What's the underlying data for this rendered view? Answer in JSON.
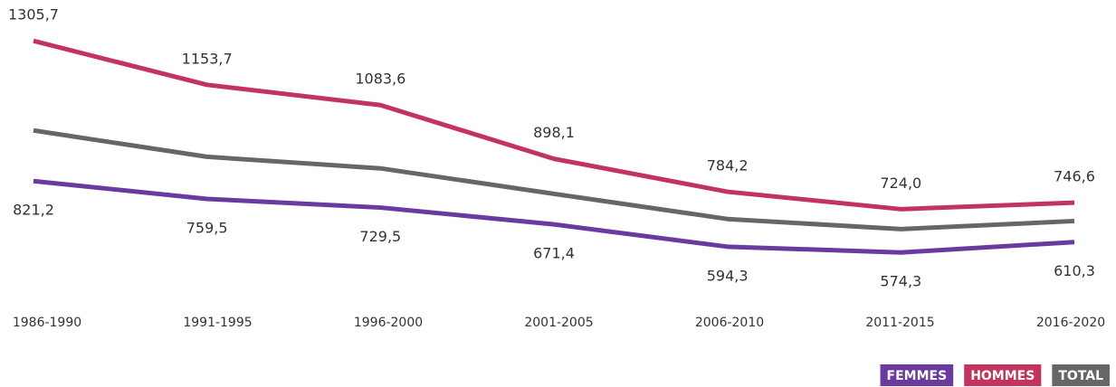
{
  "chart_data": {
    "type": "line",
    "categories": [
      "1986-1990",
      "1991-1995",
      "1996-2000",
      "2001-2005",
      "2006-2010",
      "2011-2015",
      "2016-2020"
    ],
    "series": [
      {
        "name": "FEMMES",
        "color": "#6b3a9e",
        "values": [
          821.2,
          759.5,
          729.5,
          671.4,
          594.3,
          574.3,
          610.3
        ],
        "value_labels": [
          "821,2",
          "759,5",
          "729,5",
          "671,4",
          "594,3",
          "574,3",
          "610,3"
        ]
      },
      {
        "name": "HOMMES",
        "color": "#c2345e",
        "values": [
          1305.7,
          1153.7,
          1083.6,
          898.1,
          784.2,
          724.0,
          746.6
        ],
        "value_labels": [
          "1305,7",
          "1153,7",
          "1083,6",
          "898,1",
          "784,2",
          "724,0",
          "746,6"
        ]
      },
      {
        "name": "TOTAL",
        "color": "#666666",
        "values": [
          996,
          905,
          865,
          777,
          690,
          655,
          683
        ]
      }
    ],
    "ylim": [
      400,
      1350
    ]
  }
}
